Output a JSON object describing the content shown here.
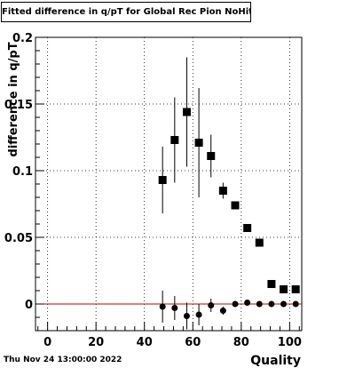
{
  "title": "Fitted difference in q/pT for Global Rec Pion NoHits",
  "footer": {
    "date": "Thu Nov 24 13:00:00 2022"
  },
  "chart_data": {
    "type": "scatter",
    "title": "Fitted difference in q/pT for Global Rec Pion NoHits",
    "xlabel": "Quality",
    "ylabel": "difference in q/pT",
    "xlim": [
      -5,
      105
    ],
    "ylim": [
      -0.02,
      0.2
    ],
    "xticks": [
      0,
      20,
      40,
      60,
      80,
      100
    ],
    "yticks": [
      0,
      0.05,
      0.1,
      0.15,
      0.2
    ],
    "ytick_labels": [
      "0",
      "0.05",
      "0.1",
      "0.15",
      "0.2"
    ],
    "grid": true,
    "reference_line": {
      "y": 0,
      "color": "#cc0000"
    },
    "series": [
      {
        "marker": "square",
        "color": "#000000",
        "points": [
          {
            "x": 47.5,
            "y": 0.093,
            "yerr": 0.025
          },
          {
            "x": 52.5,
            "y": 0.123,
            "yerr": 0.032
          },
          {
            "x": 57.5,
            "y": 0.144,
            "yerr": 0.041
          },
          {
            "x": 62.5,
            "y": 0.121,
            "yerr": 0.041
          },
          {
            "x": 67.5,
            "y": 0.111,
            "yerr": 0.016
          },
          {
            "x": 72.5,
            "y": 0.085,
            "yerr": 0.006
          },
          {
            "x": 77.5,
            "y": 0.074,
            "yerr": 0.003
          },
          {
            "x": 82.5,
            "y": 0.057,
            "yerr": 0.002
          },
          {
            "x": 87.5,
            "y": 0.046,
            "yerr": 0.002
          },
          {
            "x": 92.5,
            "y": 0.015,
            "yerr": 0.002
          },
          {
            "x": 97.5,
            "y": 0.011,
            "yerr": 0.002
          },
          {
            "x": 102.5,
            "y": 0.011,
            "yerr": 0.002
          }
        ]
      },
      {
        "marker": "circle",
        "color": "#000000",
        "points": [
          {
            "x": 47.5,
            "y": -0.002,
            "yerr": 0.012
          },
          {
            "x": 52.5,
            "y": -0.003,
            "yerr": 0.009
          },
          {
            "x": 57.5,
            "y": -0.009,
            "yerr": 0.01
          },
          {
            "x": 62.5,
            "y": -0.008,
            "yerr": 0.008
          },
          {
            "x": 67.5,
            "y": -0.001,
            "yerr": 0.005
          },
          {
            "x": 72.5,
            "y": -0.005,
            "yerr": 0.003
          },
          {
            "x": 77.5,
            "y": 0.0,
            "yerr": 0.002
          },
          {
            "x": 82.5,
            "y": 0.001,
            "yerr": 0.002
          },
          {
            "x": 87.5,
            "y": 0.0,
            "yerr": 0.001
          },
          {
            "x": 92.5,
            "y": 0.0,
            "yerr": 0.001
          },
          {
            "x": 97.5,
            "y": 0.0,
            "yerr": 0.001
          },
          {
            "x": 102.5,
            "y": 0.0,
            "yerr": 0.001
          }
        ]
      }
    ]
  }
}
